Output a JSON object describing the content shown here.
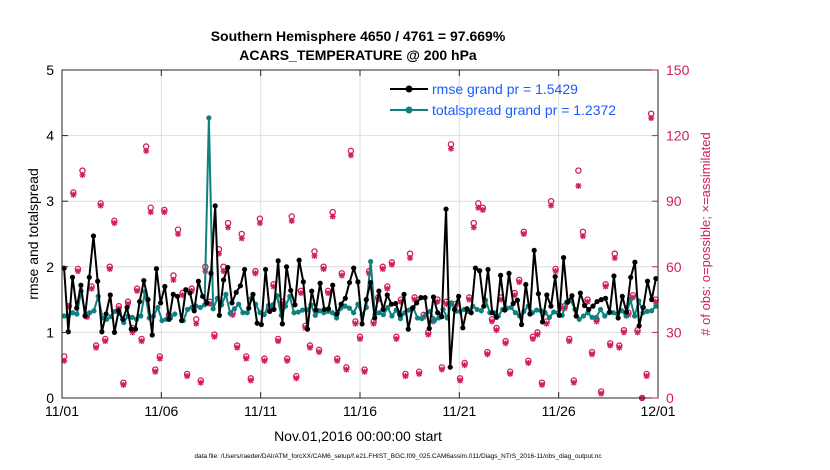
{
  "chart_data": {
    "type": "line",
    "title": "Southern Hemisphere 4650 / 4761 = 97.669%",
    "subtitle": "ACARS_TEMPERATURE @ 200 hPa",
    "xlabel": "Nov.01,2016 00:00:00 start",
    "ylabel": "rmse and totalspread",
    "ylabel_right": "# of obs: o=possible; ×=assimilated",
    "x_ticks": [
      "11/01",
      "11/06",
      "11/11",
      "11/16",
      "11/21",
      "11/26",
      "12/01"
    ],
    "x_range_days": [
      0,
      30
    ],
    "ylim": [
      0,
      5
    ],
    "y_ticks": [
      0,
      1,
      2,
      3,
      4,
      5
    ],
    "ylim_right": [
      0,
      150
    ],
    "y_ticks_right": [
      0,
      30,
      60,
      90,
      120,
      150
    ],
    "footer": "data file: /Users/raeder/DAI/ATM_forcXX/CAM6_setup/f.e21.FHIST_BGC.f09_025.CAM6assim.011/Diags_NTrS_2016-11/obs_diag_output.nc",
    "colors": {
      "rmse": "#000000",
      "spread": "#0d8080",
      "obs": "#d01f5a",
      "legend_text": "#1a5cff"
    },
    "series": [
      {
        "name": "rmse grand pr = 1.5429",
        "values": [
          1.98,
          1.01,
          1.84,
          1.37,
          1.72,
          1.25,
          1.84,
          2.47,
          1.78,
          1.01,
          1.28,
          1.57,
          1.0,
          1.33,
          1.2,
          1.38,
          1.05,
          1.05,
          1.47,
          1.79,
          1.5,
          0.96,
          1.97,
          1.45,
          1.7,
          1.2,
          1.58,
          1.55,
          1.18,
          1.65,
          1.6,
          1.33,
          1.78,
          1.55,
          1.45,
          1.9,
          2.93,
          1.26,
          1.8,
          1.99,
          1.45,
          1.61,
          1.71,
          1.96,
          1.37,
          1.58,
          1.14,
          1.12,
          1.96,
          1.32,
          1.35,
          2.09,
          1.13,
          2.0,
          1.64,
          1.42,
          2.1,
          1.77,
          1.05,
          1.63,
          1.34,
          1.75,
          1.35,
          1.36,
          1.72,
          1.28,
          1.43,
          1.52,
          1.76,
          1.98,
          1.77,
          1.13,
          1.5,
          1.76,
          1.22,
          1.63,
          1.35,
          1.57,
          1.43,
          1.44,
          1.27,
          1.58,
          1.05,
          1.37,
          1.45,
          1.53,
          1.53,
          1.06,
          1.54,
          1.3,
          1.24,
          2.88,
          0.47,
          1.35,
          1.55,
          1.07,
          1.36,
          1.3,
          1.98,
          1.94,
          1.4,
          1.96,
          1.3,
          1.23,
          1.87,
          1.34,
          1.9,
          1.44,
          1.49,
          1.12,
          1.73,
          1.28,
          2.25,
          1.59,
          1.16,
          1.57,
          1.4,
          1.85,
          1.26,
          2.14,
          1.46,
          1.56,
          1.25,
          1.6,
          1.41,
          1.35,
          1.4,
          1.47,
          1.5,
          1.52,
          1.31,
          1.86,
          1.22,
          1.55,
          1.31,
          1.84,
          2.07,
          1.1,
          1.38,
          1.78,
          1.5,
          1.82
        ]
      },
      {
        "name": "totalspread grand pr = 1.2372",
        "values": [
          1.25,
          1.25,
          1.3,
          1.28,
          1.63,
          1.27,
          1.3,
          1.33,
          1.55,
          1.22,
          1.2,
          1.24,
          1.32,
          1.29,
          1.15,
          1.25,
          1.23,
          1.2,
          1.25,
          1.62,
          1.22,
          1.25,
          1.38,
          1.18,
          1.2,
          1.22,
          1.28,
          null,
          1.18,
          1.35,
          1.38,
          1.4,
          1.38,
          1.42,
          4.27,
          1.36,
          1.52,
          1.42,
          1.58,
          1.29,
          1.36,
          1.43,
          1.3,
          1.3,
          1.52,
          1.43,
          1.3,
          1.27,
          1.41,
          1.42,
          1.56,
          1.26,
          1.4,
          1.55,
          1.3,
          1.31,
          1.34,
          1.34,
          1.42,
          1.26,
          1.33,
          1.3,
          1.32,
          1.3,
          1.22,
          1.37,
          1.4,
          1.37,
          1.3,
          1.43,
          1.27,
          1.38,
          2.08,
          1.27,
          1.3,
          1.27,
          1.38,
          1.25,
          1.34,
          1.21,
          1.3,
          1.34,
          1.38,
          1.22,
          1.21,
          1.27,
          1.32,
          1.18,
          1.22,
          1.35,
          1.22,
          1.45,
          1.32,
          1.32,
          1.35,
          1.32,
          1.4,
          1.35,
          1.33,
          1.49,
          1.3,
          1.3,
          1.25,
          1.35,
          1.37,
          1.38,
          1.3,
          1.25,
          1.32,
          1.4,
          1.3,
          1.34,
          1.33,
          1.3,
          1.23,
          1.31,
          1.3,
          1.26,
          1.46,
          1.49,
          1.35,
          1.2,
          1.25,
          1.3,
          1.23,
          1.23,
          1.35,
          1.25,
          1.3,
          1.3,
          1.28,
          1.33,
          1.25,
          1.5,
          1.25,
          1.48,
          1.3,
          1.32,
          1.33,
          1.4
        ]
      },
      {
        "name": "obs possible",
        "axis": "right",
        "values": [
          19,
          42,
          94,
          59,
          104,
          38,
          51,
          24,
          89,
          27,
          60,
          81,
          42,
          7,
          44,
          32,
          50,
          27,
          115,
          87,
          13,
          19,
          86,
          38,
          56,
          77,
          48,
          11,
          50,
          36,
          8,
          60,
          44,
          29,
          68,
          60,
          80,
          39,
          24,
          75,
          19,
          9,
          58,
          82,
          18,
          41,
          52,
          27,
          44,
          18,
          83,
          10,
          49,
          33,
          24,
          67,
          22,
          60,
          49,
          85,
          18,
          57,
          14,
          113,
          35,
          28,
          13,
          58,
          35,
          46,
          60,
          51,
          62,
          28,
          45,
          11,
          66,
          46,
          12,
          38,
          30,
          36,
          45,
          14,
          44,
          116,
          43,
          9,
          16,
          46,
          80,
          89,
          87,
          21,
          36,
          32,
          46,
          26,
          12,
          48,
          54,
          76,
          17,
          28,
          30,
          7,
          35,
          90,
          59,
          42,
          42,
          27,
          8,
          104,
          76,
          45,
          21,
          36,
          3,
          52,
          25,
          66,
          24,
          31,
          39,
          47,
          31,
          0,
          11,
          130,
          45
        ]
      },
      {
        "name": "obs assimilated",
        "axis": "right",
        "values": [
          17,
          42,
          93,
          58,
          102,
          37,
          50,
          23,
          88,
          26,
          59,
          80,
          41,
          6,
          43,
          30,
          49,
          26,
          113,
          85,
          12,
          18,
          85,
          37,
          54,
          75,
          47,
          10,
          49,
          34,
          7,
          58,
          43,
          28,
          66,
          58,
          78,
          38,
          23,
          73,
          18,
          8,
          57,
          80,
          17,
          40,
          51,
          26,
          43,
          17,
          81,
          9,
          48,
          32,
          23,
          65,
          21,
          59,
          48,
          83,
          17,
          56,
          13,
          111,
          34,
          27,
          12,
          57,
          34,
          45,
          59,
          50,
          61,
          27,
          44,
          10,
          64,
          45,
          11,
          37,
          29,
          35,
          44,
          13,
          43,
          114,
          42,
          8,
          15,
          45,
          78,
          87,
          86,
          20,
          35,
          31,
          45,
          25,
          11,
          47,
          53,
          75,
          16,
          27,
          29,
          6,
          34,
          88,
          58,
          41,
          41,
          26,
          7,
          97,
          74,
          44,
          20,
          35,
          2,
          51,
          24,
          64,
          23,
          30,
          38,
          46,
          30,
          0,
          10,
          128,
          44
        ]
      }
    ]
  }
}
